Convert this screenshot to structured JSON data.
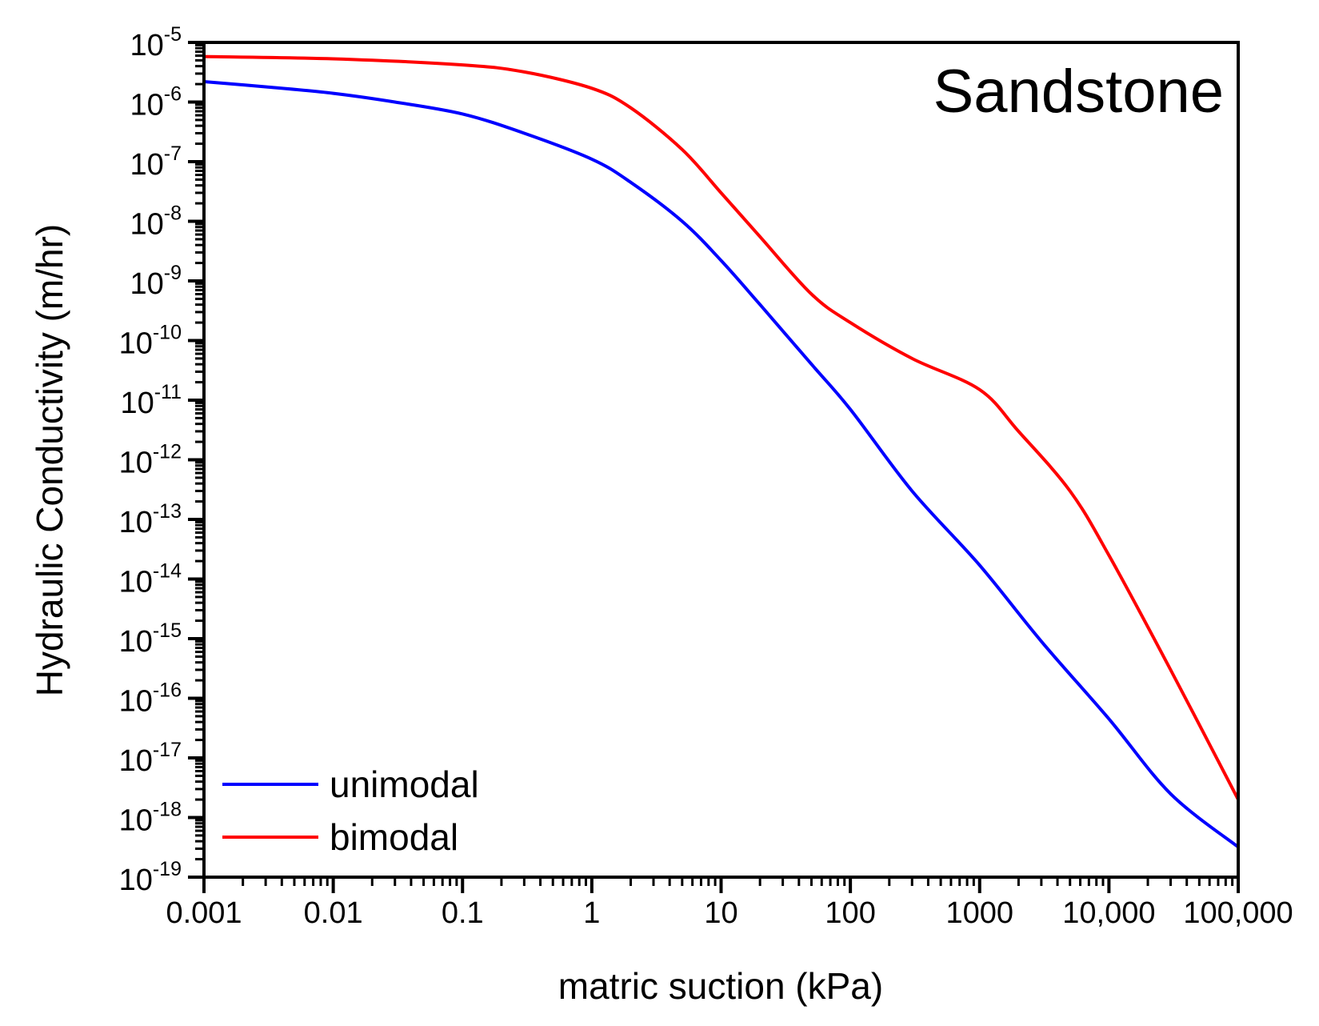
{
  "chart_data": {
    "type": "line",
    "title": "Sandstone",
    "xlabel": "matric suction (kPa)",
    "ylabel": "Hydraulic Conductivity (m/hr)",
    "xscale": "log",
    "yscale": "log",
    "xlim": [
      0.001,
      100000
    ],
    "ylim": [
      1e-19,
      1e-05
    ],
    "x_ticks": [
      {
        "value": 0.001,
        "label": "0.001"
      },
      {
        "value": 0.01,
        "label": "0.01"
      },
      {
        "value": 0.1,
        "label": "0.1"
      },
      {
        "value": 1,
        "label": "1"
      },
      {
        "value": 10,
        "label": "10"
      },
      {
        "value": 100,
        "label": "100"
      },
      {
        "value": 1000,
        "label": "1000"
      },
      {
        "value": 10000,
        "label": "10,000"
      },
      {
        "value": 100000,
        "label": "100,000"
      }
    ],
    "y_ticks": [
      {
        "exp": -5,
        "base": "10",
        "sup": "-5"
      },
      {
        "exp": -6,
        "base": "10",
        "sup": "-6"
      },
      {
        "exp": -7,
        "base": "10",
        "sup": "-7"
      },
      {
        "exp": -8,
        "base": "10",
        "sup": "-8"
      },
      {
        "exp": -9,
        "base": "10",
        "sup": "-9"
      },
      {
        "exp": -10,
        "base": "10",
        "sup": "-10"
      },
      {
        "exp": -11,
        "base": "10",
        "sup": "-11"
      },
      {
        "exp": -12,
        "base": "10",
        "sup": "-12"
      },
      {
        "exp": -13,
        "base": "10",
        "sup": "-13"
      },
      {
        "exp": -14,
        "base": "10",
        "sup": "-14"
      },
      {
        "exp": -15,
        "base": "10",
        "sup": "-15"
      },
      {
        "exp": -16,
        "base": "10",
        "sup": "-16"
      },
      {
        "exp": -17,
        "base": "10",
        "sup": "-17"
      },
      {
        "exp": -18,
        "base": "10",
        "sup": "-18"
      },
      {
        "exp": -19,
        "base": "10",
        "sup": "-19"
      }
    ],
    "legend_position": "bottom-left",
    "series": [
      {
        "name": "unimodal",
        "color": "#0000ff",
        "x": [
          0.001,
          0.003,
          0.01,
          0.03,
          0.1,
          0.3,
          1,
          2,
          5,
          10,
          20,
          50,
          100,
          300,
          1000,
          3000,
          10000,
          30000,
          100000
        ],
        "y": [
          2.2e-06,
          1.8e-06,
          1.4e-06,
          1e-06,
          6.3e-07,
          3e-07,
          1.1e-07,
          4.5e-08,
          1e-08,
          2.2e-09,
          4e-10,
          4e-11,
          7e-12,
          3e-13,
          1.7e-14,
          9e-16,
          4.5e-17,
          2.5e-18,
          3.2e-19
        ]
      },
      {
        "name": "bimodal",
        "color": "#ff0000",
        "x": [
          0.001,
          0.01,
          0.1,
          0.3,
          1,
          2,
          5,
          10,
          20,
          50,
          100,
          300,
          1000,
          2000,
          5000,
          10000,
          30000,
          100000
        ],
        "y": [
          5.8e-06,
          5.3e-06,
          4.2e-06,
          3.2e-06,
          1.7e-06,
          8e-07,
          1.6e-07,
          3e-08,
          5.5e-09,
          6e-10,
          2e-10,
          5e-11,
          1.5e-11,
          3e-12,
          3e-13,
          2.5e-14,
          3e-16,
          2e-18
        ]
      }
    ]
  }
}
